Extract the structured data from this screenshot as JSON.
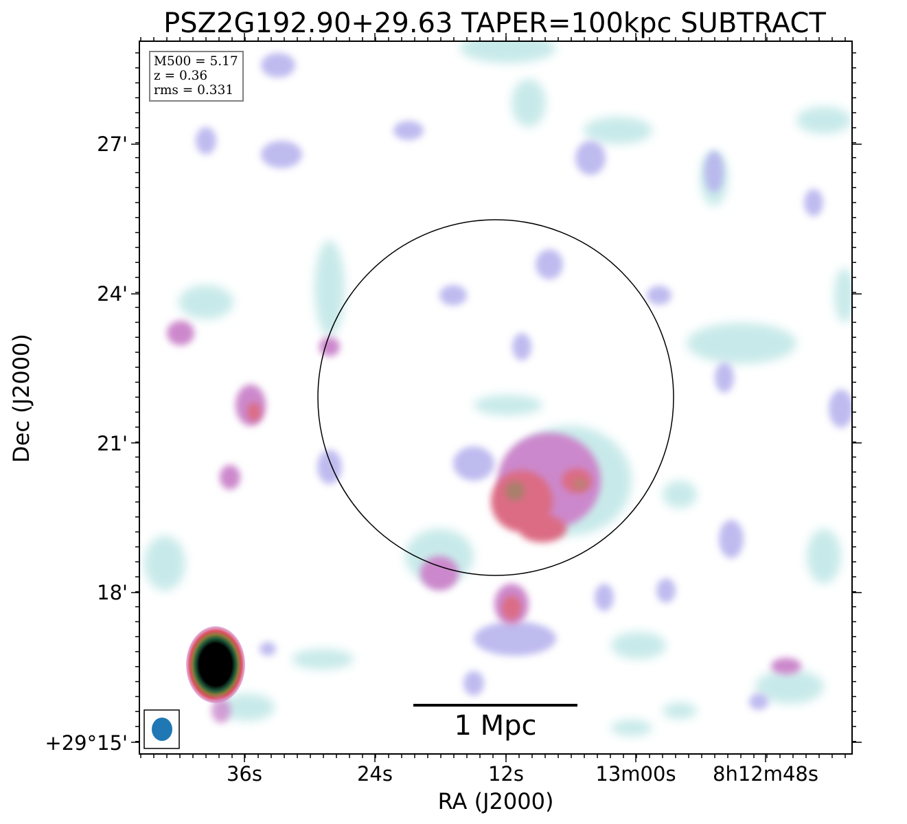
{
  "title": "PSZ2G192.90+29.63 TAPER=100kpc SUBTRACT",
  "info": {
    "m500": "M500 = 5.17",
    "z": "z = 0.36",
    "rms": "rms = 0.331"
  },
  "axes": {
    "xlabel": "RA (J2000)",
    "ylabel": "Dec (J2000)",
    "xticks": [
      "36s",
      "24s",
      "12s",
      "13m00s",
      "8h12m48s"
    ],
    "yticks": [
      "27'",
      "24'",
      "21'",
      "18'",
      "+29°15'"
    ]
  },
  "scalebar": {
    "label": "1 Mpc"
  },
  "colors": {
    "frame": "#000000",
    "emission_faint": "#bfe6e6",
    "emission_low": "#b8b4ee",
    "emission_mid": "#cc88cc",
    "emission_high": "#dc6c84",
    "emission_peak": "#a8806a",
    "compact_source_core": "#000000",
    "beam": "#1f77b4",
    "circle": "#000000"
  }
}
